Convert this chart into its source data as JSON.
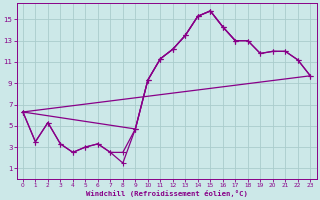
{
  "bg_color": "#cce8e8",
  "grid_color": "#aacccc",
  "line_color": "#880088",
  "marker_color": "#880088",
  "xlabel": "Windchill (Refroidissement éolien,°C)",
  "xlabel_color": "#880088",
  "tick_color": "#880088",
  "xlim": [
    -0.5,
    23.5
  ],
  "ylim": [
    0,
    16.5
  ],
  "xticks": [
    0,
    1,
    2,
    3,
    4,
    5,
    6,
    7,
    8,
    9,
    10,
    11,
    12,
    13,
    14,
    15,
    16,
    17,
    18,
    19,
    20,
    21,
    22,
    23
  ],
  "yticks": [
    1,
    3,
    5,
    7,
    9,
    11,
    13,
    15
  ],
  "curve1_x": [
    0,
    1,
    2,
    3,
    4,
    5,
    6,
    7,
    8,
    9,
    10,
    11,
    12,
    13,
    14,
    15,
    16,
    17
  ],
  "curve1_y": [
    6.3,
    3.5,
    5.3,
    3.3,
    2.5,
    3.0,
    3.3,
    2.5,
    1.5,
    4.7,
    9.3,
    11.3,
    12.2,
    13.5,
    15.3,
    15.8,
    14.3,
    13.0
  ],
  "curve2_x": [
    0,
    1,
    2,
    3,
    4,
    5,
    6,
    7,
    8,
    9,
    10,
    11,
    12,
    13,
    14,
    15,
    16,
    17,
    18,
    19,
    20,
    21,
    22,
    23
  ],
  "curve2_y": [
    6.3,
    3.5,
    5.3,
    3.3,
    2.5,
    3.0,
    3.3,
    2.5,
    2.5,
    4.7,
    9.3,
    11.3,
    12.2,
    13.5,
    15.3,
    15.8,
    14.3,
    13.0,
    13.0,
    11.8,
    12.0,
    12.0,
    11.2,
    9.7
  ],
  "curve3_x": [
    0,
    9,
    10,
    11,
    12,
    13,
    14,
    15,
    16,
    17,
    18,
    19,
    20,
    21,
    22,
    23
  ],
  "curve3_y": [
    6.3,
    4.7,
    9.3,
    11.3,
    12.2,
    13.5,
    15.3,
    15.8,
    14.3,
    13.0,
    13.0,
    11.8,
    12.0,
    12.0,
    11.2,
    9.7
  ],
  "line_x": [
    0,
    23
  ],
  "line_y": [
    6.3,
    9.7
  ]
}
